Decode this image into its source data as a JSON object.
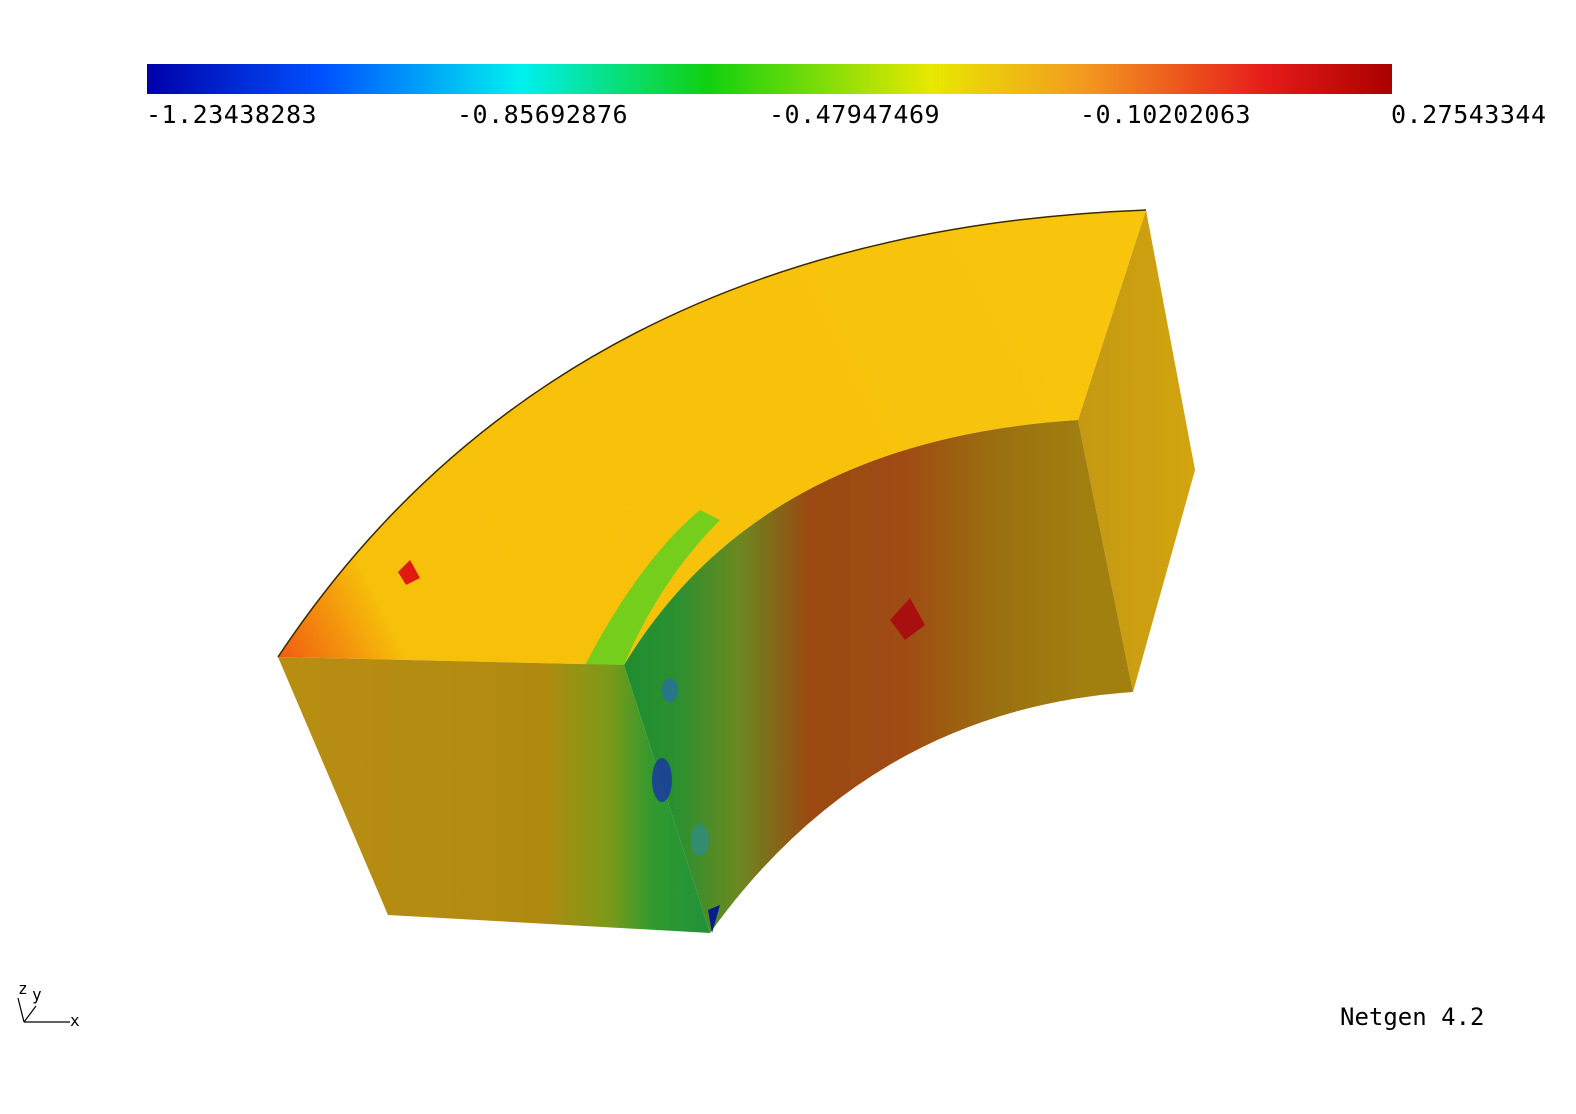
{
  "colorbar": {
    "labels": [
      "-1.23438283",
      "-0.85692876",
      "-0.47947469",
      "-0.10202063",
      "0.27543344"
    ],
    "gradient_colors": [
      "#0000a8",
      "#0050ff",
      "#00f0f0",
      "#10d010",
      "#e8e800",
      "#f39b20",
      "#e61a1a",
      "#aa0000"
    ]
  },
  "axes": {
    "z": "z",
    "y": "y",
    "x": "x"
  },
  "footer": {
    "version": "Netgen 4.2"
  },
  "colors": {
    "background": "#ffffff",
    "mid_value": "#b08a10",
    "top_face": "#f7c10a"
  }
}
